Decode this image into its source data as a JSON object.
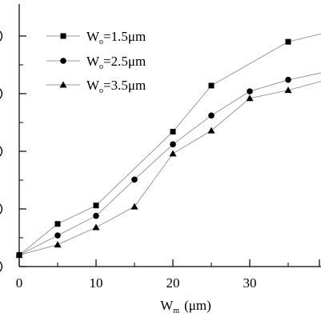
{
  "chart_data": {
    "type": "line",
    "title": "",
    "xlabel_main": "W",
    "xlabel_sub": "m",
    "xlabel_unit": "(μm)",
    "ylabel": "",
    "xlim": [
      0,
      40
    ],
    "x_ticks": [
      0,
      10,
      20,
      30
    ],
    "x_tick_labels": [
      "0",
      "10",
      "20",
      "30"
    ],
    "grid": false,
    "legend_placement": "top-left",
    "legend": [
      {
        "main": "W",
        "sub": "o",
        "rest": "=1.5μm",
        "marker": "square"
      },
      {
        "main": "W",
        "sub": "o",
        "rest": "=2.5μm",
        "marker": "circle"
      },
      {
        "main": "W",
        "sub": "o",
        "rest": "=3.5μm",
        "marker": "triangle"
      }
    ],
    "series": [
      {
        "name": "Wo=1.5μm",
        "marker": "square",
        "x": [
          0,
          5,
          10,
          20,
          25,
          35,
          40
        ],
        "y": [
          0.2,
          0.74,
          1.06,
          2.34,
          3.14,
          3.9,
          4.06
        ]
      },
      {
        "name": "Wo=2.5μm",
        "marker": "circle",
        "x": [
          0,
          5,
          10,
          15,
          20,
          25,
          30,
          35,
          40
        ],
        "y": [
          0.2,
          0.54,
          0.88,
          1.51,
          2.12,
          2.62,
          3.04,
          3.24,
          3.38
        ]
      },
      {
        "name": "Wo=3.5μm",
        "marker": "triangle",
        "x": [
          0,
          5,
          10,
          15,
          20,
          25,
          30,
          35,
          40
        ],
        "y": [
          0.2,
          0.38,
          0.68,
          1.04,
          1.96,
          2.36,
          2.92,
          3.06,
          3.24
        ]
      }
    ]
  }
}
